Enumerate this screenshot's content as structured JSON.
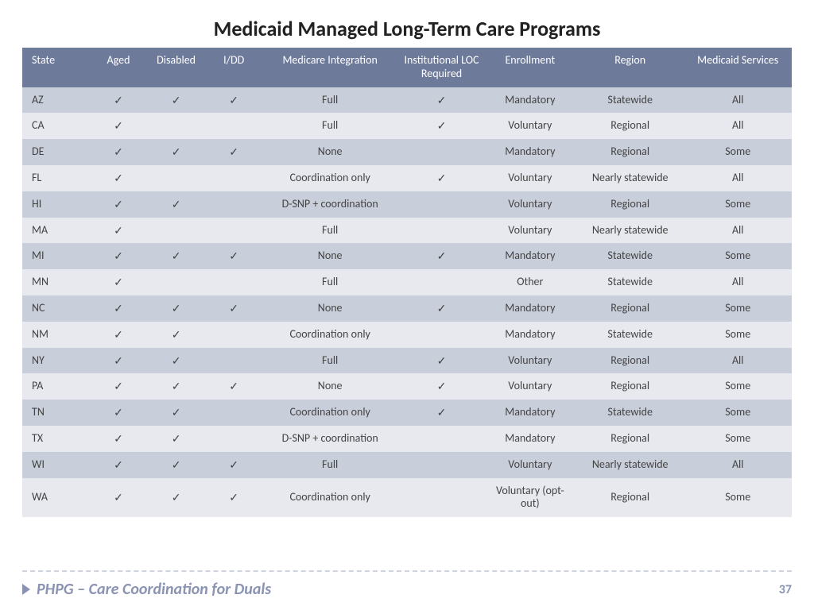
{
  "title": "Medicaid Managed Long-Term Care Programs",
  "checkmark": "✓",
  "columns": [
    {
      "label": "State",
      "width": "9%"
    },
    {
      "label": "Aged",
      "width": "7%"
    },
    {
      "label": "Disabled",
      "width": "8%"
    },
    {
      "label": "I/DD",
      "width": "7%"
    },
    {
      "label": "Medicare Integration",
      "width": "18%"
    },
    {
      "label": "Institutional LOC Required",
      "width": "11%"
    },
    {
      "label": "Enrollment",
      "width": "12%"
    },
    {
      "label": "Region",
      "width": "14%"
    },
    {
      "label": "Medicaid Services",
      "width": "14%"
    }
  ],
  "rows": [
    {
      "state": "AZ",
      "aged": true,
      "disabled": true,
      "idd": true,
      "integration": "Full",
      "loc": true,
      "enrollment": "Mandatory",
      "region": "Statewide",
      "services": "All"
    },
    {
      "state": "CA",
      "aged": true,
      "disabled": false,
      "idd": false,
      "integration": "Full",
      "loc": true,
      "enrollment": "Voluntary",
      "region": "Regional",
      "services": "All"
    },
    {
      "state": "DE",
      "aged": true,
      "disabled": true,
      "idd": true,
      "integration": "None",
      "loc": false,
      "enrollment": "Mandatory",
      "region": "Regional",
      "services": "Some"
    },
    {
      "state": "FL",
      "aged": true,
      "disabled": false,
      "idd": false,
      "integration": "Coordination only",
      "loc": true,
      "enrollment": "Voluntary",
      "region": "Nearly statewide",
      "services": "All"
    },
    {
      "state": "HI",
      "aged": true,
      "disabled": true,
      "idd": false,
      "integration": "D-SNP + coordination",
      "loc": false,
      "enrollment": "Voluntary",
      "region": "Regional",
      "services": "Some"
    },
    {
      "state": "MA",
      "aged": true,
      "disabled": false,
      "idd": false,
      "integration": "Full",
      "loc": false,
      "enrollment": "Voluntary",
      "region": "Nearly statewide",
      "services": "All"
    },
    {
      "state": "MI",
      "aged": true,
      "disabled": true,
      "idd": true,
      "integration": "None",
      "loc": true,
      "enrollment": "Mandatory",
      "region": "Statewide",
      "services": "Some"
    },
    {
      "state": "MN",
      "aged": true,
      "disabled": false,
      "idd": false,
      "integration": "Full",
      "loc": false,
      "enrollment": "Other",
      "region": "Statewide",
      "services": "All"
    },
    {
      "state": "NC",
      "aged": true,
      "disabled": true,
      "idd": true,
      "integration": "None",
      "loc": true,
      "enrollment": "Mandatory",
      "region": "Regional",
      "services": "Some"
    },
    {
      "state": "NM",
      "aged": true,
      "disabled": true,
      "idd": false,
      "integration": "Coordination only",
      "loc": false,
      "enrollment": "Mandatory",
      "region": "Statewide",
      "services": "Some"
    },
    {
      "state": "NY",
      "aged": true,
      "disabled": true,
      "idd": false,
      "integration": "Full",
      "loc": true,
      "enrollment": "Voluntary",
      "region": "Regional",
      "services": "All"
    },
    {
      "state": "PA",
      "aged": true,
      "disabled": true,
      "idd": true,
      "integration": "None",
      "loc": true,
      "enrollment": "Voluntary",
      "region": "Regional",
      "services": "Some"
    },
    {
      "state": "TN",
      "aged": true,
      "disabled": true,
      "idd": false,
      "integration": "Coordination only",
      "loc": true,
      "enrollment": "Mandatory",
      "region": "Statewide",
      "services": "Some"
    },
    {
      "state": "TX",
      "aged": true,
      "disabled": true,
      "idd": false,
      "integration": "D-SNP + coordination",
      "loc": false,
      "enrollment": "Mandatory",
      "region": "Regional",
      "services": "Some"
    },
    {
      "state": "WI",
      "aged": true,
      "disabled": true,
      "idd": true,
      "integration": "Full",
      "loc": false,
      "enrollment": "Voluntary",
      "region": "Nearly statewide",
      "services": "All"
    },
    {
      "state": "WA",
      "aged": true,
      "disabled": true,
      "idd": true,
      "integration": "Coordination only",
      "loc": false,
      "enrollment": "Voluntary (opt-out)",
      "region": "Regional",
      "services": "Some"
    }
  ],
  "footer": {
    "text": "PHPG – Care Coordination for Duals",
    "page": "37"
  },
  "colors": {
    "header_bg": "#6e7a9a",
    "row_odd": "#c9cedb",
    "row_even": "#e8e9ef",
    "footer": "#8a93b2"
  }
}
